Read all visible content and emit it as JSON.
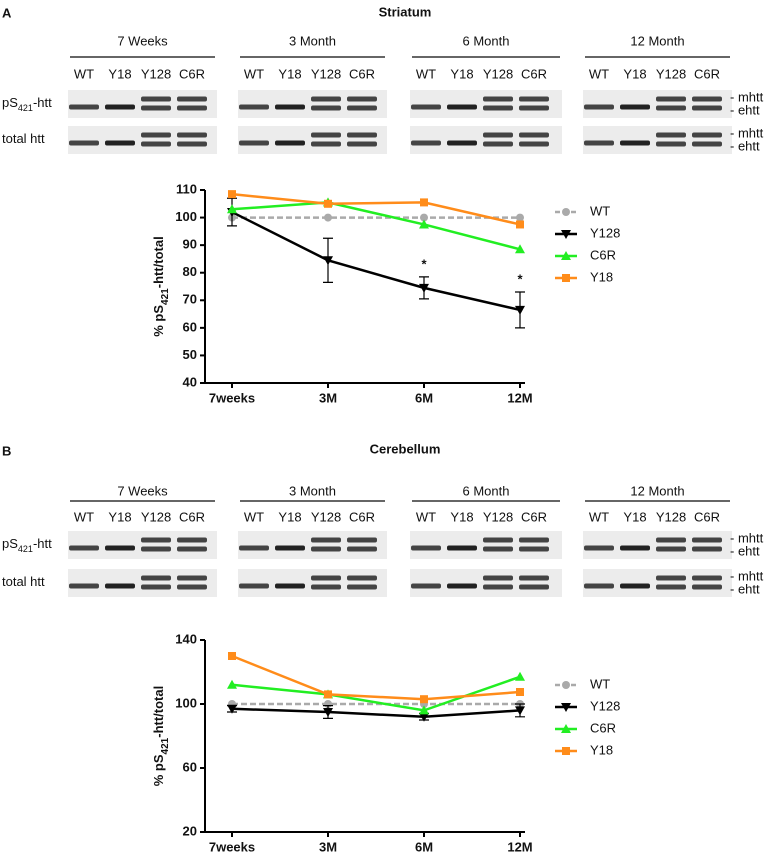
{
  "panels": [
    {
      "label": "A",
      "title": "Striatum",
      "blot": {
        "groups": [
          "7 Weeks",
          "3 Month",
          "6 Month",
          "12 Month"
        ],
        "lanes": [
          "WT",
          "Y18",
          "Y128",
          "C6R"
        ],
        "rows": [
          [
            "pS",
            "421",
            "-htt"
          ],
          [
            "total htt"
          ]
        ],
        "band_labels": [
          [
            "- mhtt",
            "- ehtt"
          ],
          [
            "- mhtt",
            "- ehtt"
          ]
        ]
      }
    },
    {
      "label": "B",
      "title": "Cerebellum",
      "blot": {
        "groups": [
          "7 Weeks",
          "3 Month",
          "6 Month",
          "12 Month"
        ],
        "lanes": [
          "WT",
          "Y18",
          "Y128",
          "C6R"
        ],
        "rows": [
          [
            "pS",
            "421",
            "-htt"
          ],
          [
            "total htt"
          ]
        ],
        "band_labels": [
          [
            "- mhtt",
            "- ehtt"
          ],
          [
            "- mhtt",
            "- ehtt"
          ]
        ]
      }
    }
  ],
  "chart_data": [
    {
      "type": "line",
      "ylabel": [
        "% pS",
        "421",
        "-htt/total"
      ],
      "categories": [
        "7weeks",
        "3M",
        "6M",
        "12M"
      ],
      "ylim": [
        40,
        110
      ],
      "yticks": [
        40,
        50,
        60,
        70,
        80,
        90,
        100,
        110
      ],
      "series": [
        {
          "name": "WT",
          "color": "#aaaaaa",
          "marker": "circle",
          "dashed": true,
          "values": [
            100,
            100,
            100,
            100
          ]
        },
        {
          "name": "Y128",
          "color": "#000000",
          "marker": "triangle-down",
          "dashed": false,
          "values": [
            102,
            84.5,
            74.5,
            66.5
          ],
          "errors": [
            5,
            8,
            4,
            6.5
          ]
        },
        {
          "name": "C6R",
          "color": "#22ee22",
          "marker": "triangle",
          "dashed": false,
          "values": [
            103,
            105.5,
            97.5,
            88.5
          ]
        },
        {
          "name": "Y18",
          "color": "#ff8c1a",
          "marker": "square",
          "dashed": false,
          "values": [
            108.5,
            105,
            105.5,
            97.5
          ]
        }
      ],
      "annotations": [
        "*",
        "*"
      ]
    },
    {
      "type": "line",
      "ylabel": [
        "% pS",
        "421",
        "-htt/total"
      ],
      "categories": [
        "7weeks",
        "3M",
        "6M",
        "12M"
      ],
      "ylim": [
        20,
        140
      ],
      "yticks": [
        20,
        60,
        100,
        140
      ],
      "series": [
        {
          "name": "WT",
          "color": "#aaaaaa",
          "marker": "circle",
          "dashed": true,
          "values": [
            100,
            100,
            100,
            100
          ]
        },
        {
          "name": "Y128",
          "color": "#000000",
          "marker": "triangle-down",
          "dashed": false,
          "values": [
            97,
            95,
            92,
            96
          ],
          "errors": [
            2,
            4,
            2,
            4
          ]
        },
        {
          "name": "C6R",
          "color": "#22ee22",
          "marker": "triangle",
          "dashed": false,
          "values": [
            112,
            106,
            96,
            117
          ]
        },
        {
          "name": "Y18",
          "color": "#ff8c1a",
          "marker": "square",
          "dashed": false,
          "values": [
            130,
            106,
            103,
            107.5
          ]
        }
      ]
    }
  ]
}
